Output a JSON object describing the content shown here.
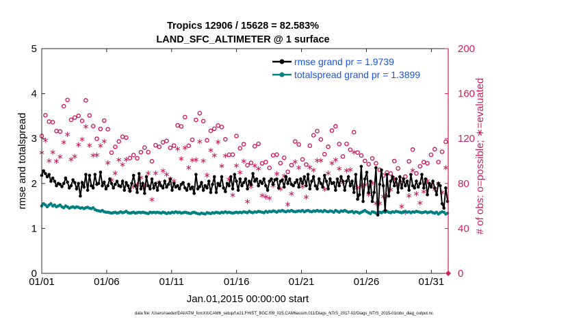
{
  "chart_data": {
    "type": "line",
    "title_line1": "Tropics 12906 / 15628 = 82.583%",
    "title_line2": "LAND_SFC_ALTIMETER @ 1 surface",
    "xlabel": "Jan.01,2015 00:00:00 start",
    "ylabel_left": "rmse and totalspread",
    "ylabel_right": "# of obs: o=possible; ∗=evaluated",
    "footnote": "data file: /Users/raeder/DAI/ATM_forcXX/CAM6_setup/f.e21.FHIST_BGC.f09_025.CAM6assim.011/Diags_NTrS_2017-02/Diags_NTrS_2015-01/obs_diag_output.nc",
    "xlim": [
      1,
      32.3
    ],
    "ylim_left": [
      0,
      5
    ],
    "ylim_right": [
      0,
      200
    ],
    "x_ticks": [
      {
        "value": 1,
        "label": "01/01"
      },
      {
        "value": 6,
        "label": "01/06"
      },
      {
        "value": 11,
        "label": "01/11"
      },
      {
        "value": 16,
        "label": "01/16"
      },
      {
        "value": 21,
        "label": "01/21"
      },
      {
        "value": 26,
        "label": "01/26"
      },
      {
        "value": 31,
        "label": "01/31"
      }
    ],
    "y_left_ticks": [
      "0",
      "1",
      "2",
      "3",
      "4",
      "5"
    ],
    "y_right_ticks": [
      "0",
      "40",
      "80",
      "120",
      "160",
      "200"
    ],
    "legend": [
      {
        "name": "rmse grand pr = 1.9739",
        "color": "#000000"
      },
      {
        "name": "totalspread grand pr = 1.3899",
        "color": "#008080"
      }
    ],
    "legend_placement": "top-right",
    "colors": {
      "rmse": "#000000",
      "spread": "#008080",
      "obs": "#cc1f5a",
      "right_axis": "#cc1f5a",
      "legend_text": "#1a55e6"
    },
    "series_rmse": [
      2.18,
      2.28,
      2.22,
      2.15,
      2.2,
      2.05,
      2.12,
      2.05,
      1.95,
      2.0,
      1.98,
      1.93,
      2.0,
      2.12,
      2.03,
      1.9,
      1.95,
      2.08,
      2.02,
      1.88,
      2.0,
      1.72,
      2.02,
      1.92,
      2.2,
      1.85,
      2.18,
      1.95,
      1.9,
      2.2,
      1.98,
      2.0,
      2.25,
      1.95,
      2.03,
      1.88,
      1.95,
      2.1,
      2.0,
      1.9,
      1.98,
      2.05,
      1.95,
      1.93,
      2.05,
      1.85,
      2.02,
      1.95,
      1.83,
      2.0,
      2.18,
      1.95,
      1.8,
      2.22,
      1.88,
      2.0,
      1.78,
      2.15,
      1.95,
      1.88,
      2.1,
      1.9,
      2.0,
      1.85,
      2.02,
      1.95,
      1.9,
      2.05,
      1.92,
      1.98,
      2.1,
      1.85,
      2.0,
      1.92,
      1.95,
      1.88,
      1.98,
      2.02,
      1.9,
      1.85,
      1.98,
      1.88,
      1.92,
      1.78,
      2.2,
      1.88,
      1.93,
      2.02,
      1.85,
      1.95,
      1.9,
      2.05,
      1.8,
      1.98,
      2.15,
      1.8,
      2.0,
      1.95,
      2.15,
      1.9,
      1.82,
      2.0,
      1.95,
      2.15,
      1.88,
      2.2,
      2.05,
      1.85,
      2.1,
      1.95,
      2.02,
      2.1,
      1.88,
      2.05,
      1.98,
      2.22,
      2.05,
      2.1,
      1.95,
      2.05,
      2.0,
      2.1,
      1.95,
      1.85,
      2.05,
      2.1,
      1.98,
      2.08,
      2.1,
      1.9,
      2.05,
      2.08,
      1.92,
      2.15,
      2.0,
      2.1,
      1.98,
      1.95,
      2.02,
      2.08,
      1.92,
      2.1,
      2.0,
      2.15,
      1.95,
      2.2,
      1.88,
      2.05,
      2.15,
      1.95,
      1.88,
      2.1,
      2.0,
      1.92,
      2.18,
      2.05,
      1.88,
      2.1,
      2.0,
      2.02,
      1.85,
      2.1,
      1.95,
      2.15,
      2.05,
      1.85,
      2.05,
      2.15,
      1.95,
      2.05,
      1.8,
      2.2,
      1.65,
      1.75,
      2.38,
      1.6,
      2.1,
      2.25,
      1.8,
      2.05,
      1.6,
      1.8,
      2.35,
      1.3,
      1.98,
      2.3,
      1.95,
      1.4,
      2.2,
      1.72,
      2.05,
      2.15,
      1.95,
      2.1,
      1.8,
      2.15,
      1.9,
      2.1,
      1.95,
      2.05,
      1.85,
      2.2,
      1.95,
      1.9,
      2.05,
      1.92,
      2.0,
      2.2,
      1.9,
      2.1,
      1.75,
      2.0,
      1.92,
      2.05,
      1.9,
      1.75,
      2.0,
      1.95,
      1.55,
      1.45,
      1.9,
      1.6
    ],
    "series_spread": [
      1.5,
      1.55,
      1.52,
      1.48,
      1.52,
      1.55,
      1.5,
      1.52,
      1.48,
      1.5,
      1.52,
      1.48,
      1.46,
      1.5,
      1.48,
      1.45,
      1.47,
      1.48,
      1.46,
      1.48,
      1.47,
      1.45,
      1.46,
      1.44,
      1.46,
      1.47,
      1.45,
      1.44,
      1.46,
      1.42,
      1.4,
      1.39,
      1.38,
      1.4,
      1.37,
      1.36,
      1.36,
      1.35,
      1.34,
      1.35,
      1.36,
      1.34,
      1.35,
      1.37,
      1.35,
      1.36,
      1.38,
      1.35,
      1.34,
      1.35,
      1.36,
      1.34,
      1.35,
      1.36,
      1.35,
      1.36,
      1.35,
      1.34,
      1.33,
      1.36,
      1.35,
      1.36,
      1.35,
      1.36,
      1.35,
      1.34,
      1.36,
      1.35,
      1.33,
      1.35,
      1.34,
      1.36,
      1.35,
      1.37,
      1.35,
      1.36,
      1.34,
      1.35,
      1.36,
      1.35,
      1.34,
      1.33,
      1.35,
      1.36,
      1.34,
      1.33,
      1.32,
      1.34,
      1.33,
      1.32,
      1.35,
      1.34,
      1.33,
      1.35,
      1.34,
      1.36,
      1.35,
      1.34,
      1.36,
      1.35,
      1.37,
      1.35,
      1.36,
      1.35,
      1.34,
      1.35,
      1.36,
      1.35,
      1.36,
      1.35,
      1.37,
      1.36,
      1.35,
      1.38,
      1.36,
      1.35,
      1.37,
      1.36,
      1.38,
      1.37,
      1.36,
      1.35,
      1.38,
      1.36,
      1.38,
      1.37,
      1.39,
      1.38,
      1.36,
      1.39,
      1.38,
      1.4,
      1.38,
      1.37,
      1.39,
      1.38,
      1.4,
      1.38,
      1.37,
      1.38,
      1.39,
      1.38,
      1.4,
      1.37,
      1.39,
      1.4,
      1.38,
      1.37,
      1.39,
      1.38,
      1.4,
      1.38,
      1.39,
      1.37,
      1.4,
      1.38,
      1.37,
      1.39,
      1.38,
      1.36,
      1.4,
      1.38,
      1.36,
      1.39,
      1.38,
      1.4,
      1.38,
      1.36,
      1.37,
      1.38,
      1.35,
      1.37,
      1.36,
      1.34,
      1.36,
      1.38,
      1.4,
      1.37,
      1.35,
      1.33,
      1.37,
      1.36,
      1.34,
      1.35,
      1.36,
      1.35,
      1.37,
      1.36,
      1.38,
      1.36,
      1.35,
      1.37,
      1.36,
      1.38,
      1.37,
      1.36,
      1.35,
      1.37,
      1.38,
      1.36,
      1.37,
      1.35,
      1.37,
      1.36,
      1.38,
      1.37,
      1.36,
      1.35,
      1.36,
      1.37,
      1.35,
      1.36,
      1.37,
      1.35,
      1.34,
      1.36,
      1.32,
      1.35,
      1.37,
      1.36,
      1.32,
      1.34
    ]
  }
}
